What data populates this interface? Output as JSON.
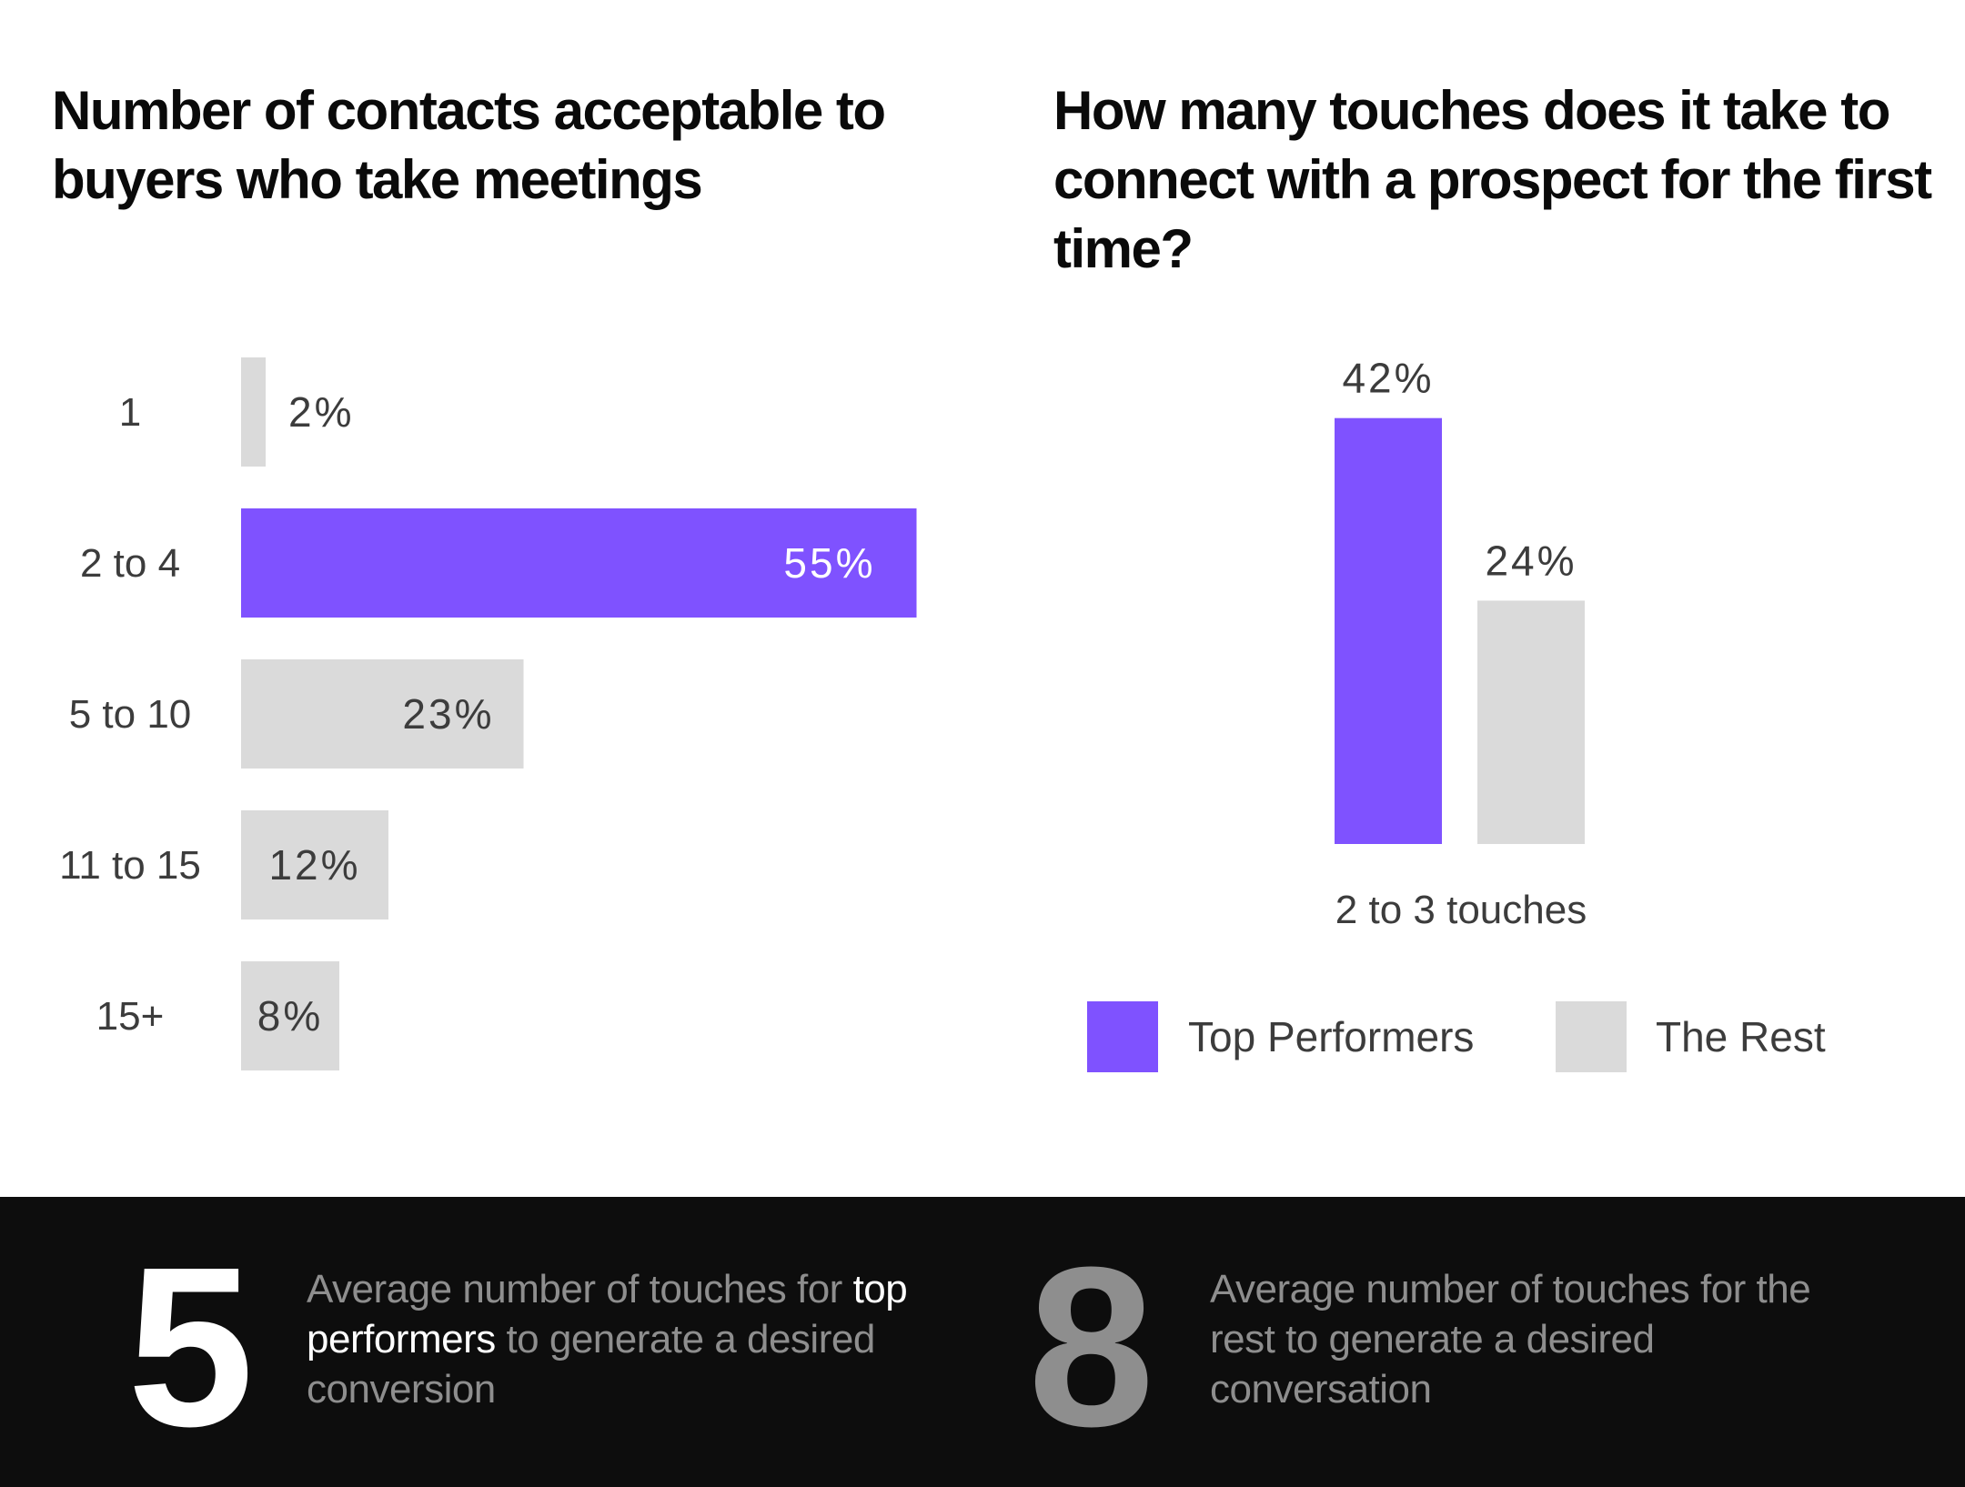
{
  "colors": {
    "accent": "#7f52ff",
    "rest": "#dadada",
    "dark": "#0d0d0d",
    "muted": "#8e8e8e"
  },
  "chart_data": [
    {
      "type": "bar",
      "orientation": "horizontal",
      "title": "Number of contacts acceptable to buyers who take meetings",
      "categories": [
        "1",
        "2 to 4",
        "5 to 10",
        "11 to 15",
        "15+"
      ],
      "values": [
        2,
        55,
        23,
        12,
        8
      ],
      "labels": [
        "2%",
        "55%",
        "23%",
        "12%",
        "8%"
      ],
      "highlight_index": 1,
      "unit": "%"
    },
    {
      "type": "bar",
      "title": "How many touches does it take to connect with a prospect for the first time?",
      "categories": [
        "2 to 3 touches"
      ],
      "series": [
        {
          "name": "Top Performers",
          "values": [
            42
          ],
          "labels": [
            "42%"
          ]
        },
        {
          "name": "The Rest",
          "values": [
            24
          ],
          "labels": [
            "24%"
          ]
        }
      ],
      "legend": "bottom",
      "unit": "%"
    }
  ],
  "stats": [
    {
      "value": "5",
      "text_before": "Average number of touches for ",
      "highlight": "top performers",
      "text_after": " to generate a desired conversion"
    },
    {
      "value": "8",
      "text_before": "Average number of touches for the rest to generate a desired conversation",
      "highlight": "",
      "text_after": ""
    }
  ]
}
